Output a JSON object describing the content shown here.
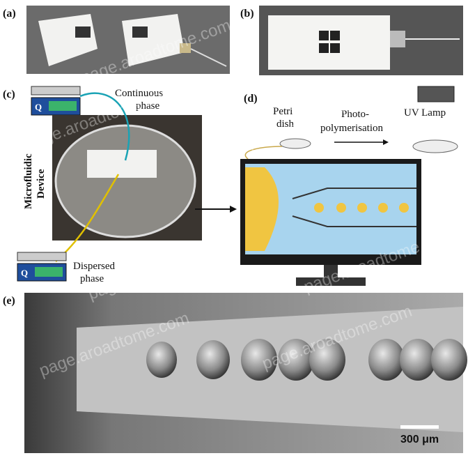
{
  "panels": {
    "a": {
      "label": "(a)"
    },
    "b": {
      "label": "(b)"
    },
    "c": {
      "label": "(c)",
      "continuous_phase": [
        "Continuous",
        "phase"
      ],
      "dispersed_phase": [
        "Dispersed",
        "phase"
      ],
      "device": [
        "Microfluidic",
        "Device"
      ],
      "pump_label": "Q"
    },
    "d": {
      "label": "(d)",
      "petri_dish": [
        "Petri",
        "dish"
      ],
      "process": [
        "Photo-",
        "polymerisation"
      ],
      "lamp": "UV Lamp"
    },
    "e": {
      "label": "(e)",
      "scale_bar": "300 μm"
    }
  },
  "watermark": "page.aroadtome.com"
}
